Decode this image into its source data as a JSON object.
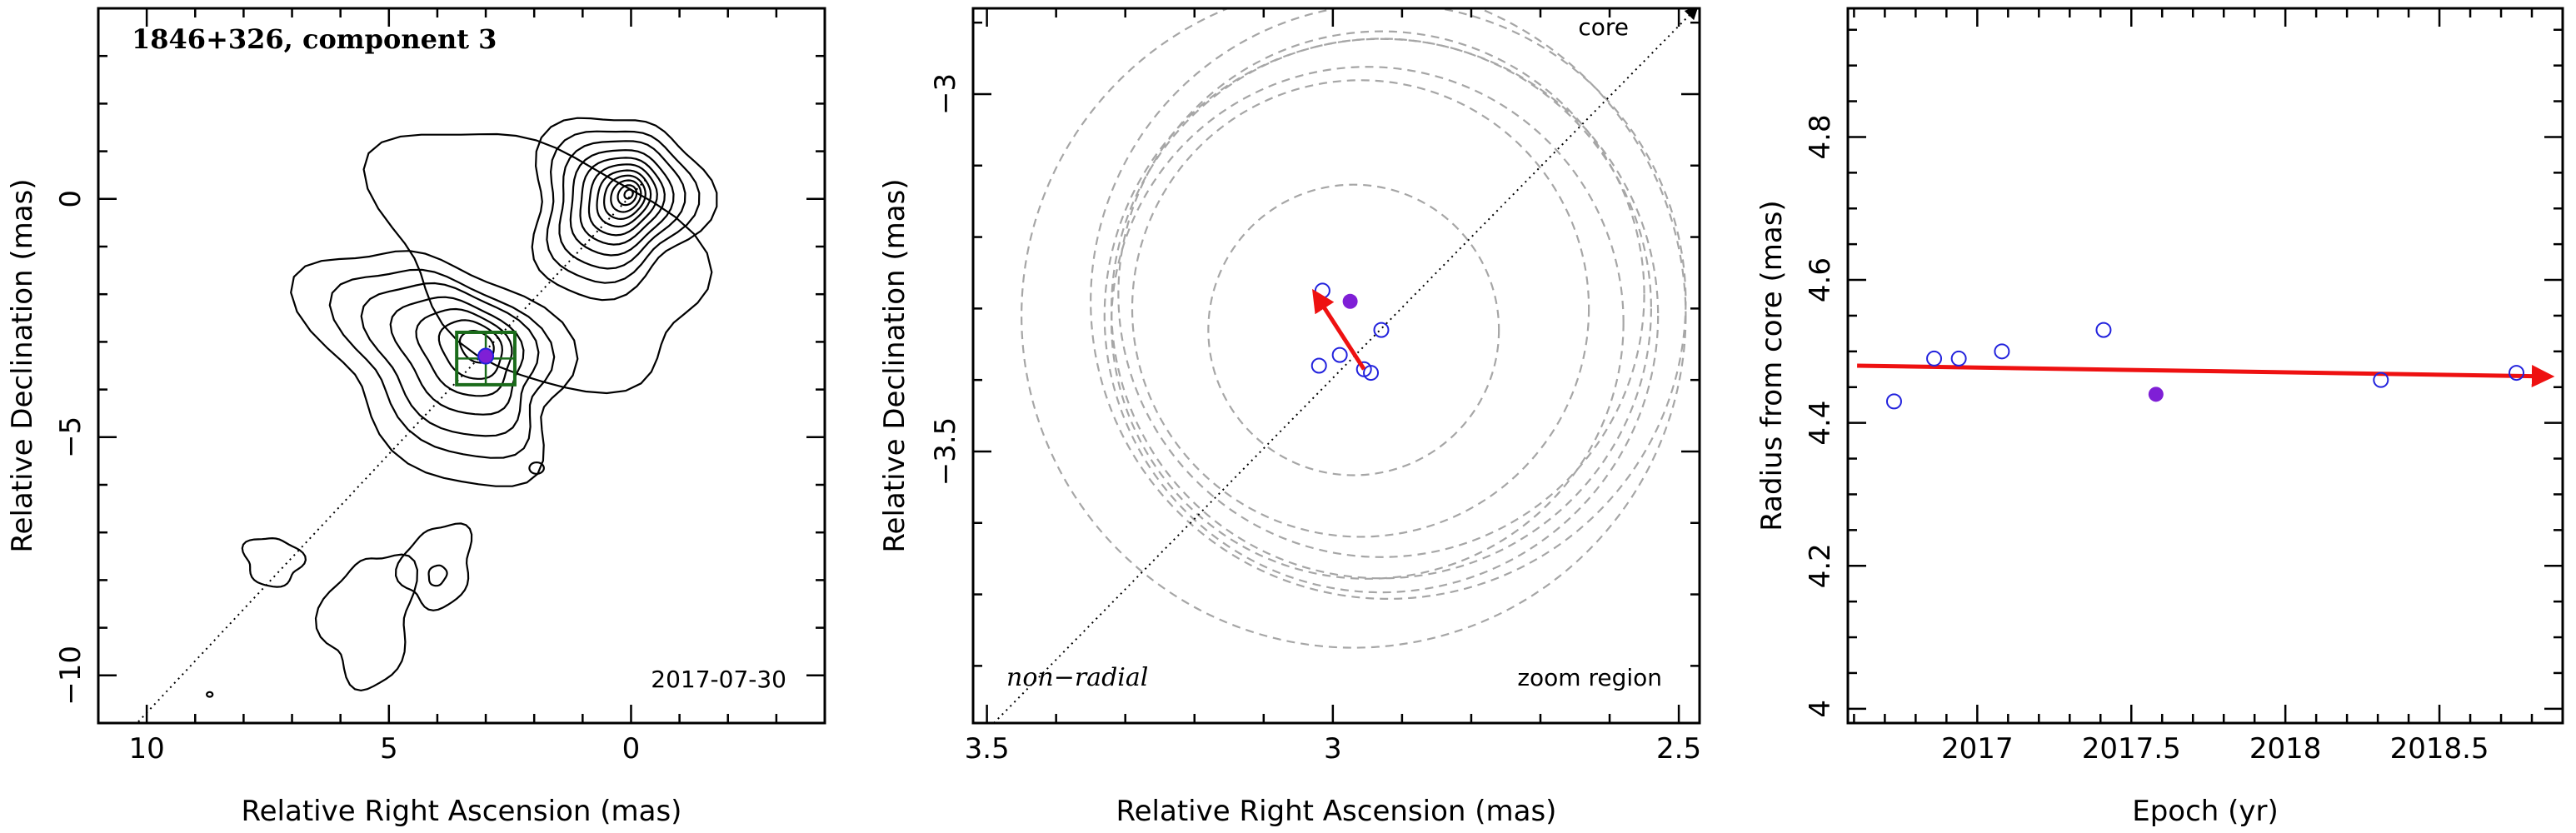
{
  "chart_data": [
    {
      "type": "contour",
      "title": "1846+326, component 3",
      "xlabel": "Relative Right Ascension (mas)",
      "ylabel": "Relative Declination (mas)",
      "xlim": [
        11,
        -4
      ],
      "ylim": [
        -11,
        4
      ],
      "x_ticks": [
        10,
        5,
        0
      ],
      "y_ticks": [
        0,
        -5,
        -10
      ],
      "epoch_label": "2017-07-30",
      "core": {
        "x": 0,
        "y": 0
      },
      "component": {
        "x": 3.0,
        "y": -3.3,
        "color": "#7f1fd6"
      },
      "zoom_box": {
        "x": [
          2.4,
          3.6
        ],
        "y": [
          -3.9,
          -2.8
        ],
        "color": "#1a6b1a"
      },
      "contour_color": "#000000"
    },
    {
      "type": "scatter",
      "xlabel": "Relative Right Ascension (mas)",
      "ylabel": "Relative Declination (mas)",
      "xlim": [
        3.52,
        2.47
      ],
      "ylim": [
        -3.88,
        -2.88
      ],
      "x_ticks": [
        3.5,
        3,
        2.5
      ],
      "x_tick_labels": [
        "3.5",
        "3",
        "2.5"
      ],
      "y_ticks": [
        -3,
        -3.5
      ],
      "y_tick_labels": [
        "−3",
        "−3.5"
      ],
      "core_label": "core",
      "non_radial_label": "non−radial",
      "zoom_label": "zoom region",
      "points_open": [
        {
          "x": 3.015,
          "y": -3.275
        },
        {
          "x": 3.02,
          "y": -3.38
        },
        {
          "x": 2.99,
          "y": -3.365
        },
        {
          "x": 2.955,
          "y": -3.385
        },
        {
          "x": 2.945,
          "y": -3.39
        },
        {
          "x": 2.93,
          "y": -3.33
        }
      ],
      "points_filled": [
        {
          "x": 2.975,
          "y": -3.29
        }
      ],
      "circles": [
        {
          "cx": 2.97,
          "cy": -3.33,
          "r": 0.21
        },
        {
          "cx": 2.96,
          "cy": -3.3,
          "r": 0.33
        },
        {
          "cx": 2.95,
          "cy": -3.32,
          "r": 0.37
        },
        {
          "cx": 2.93,
          "cy": -3.28,
          "r": 0.38
        },
        {
          "cx": 2.93,
          "cy": -3.3,
          "r": 0.39
        },
        {
          "cx": 2.93,
          "cy": -3.31,
          "r": 0.4
        },
        {
          "cx": 2.92,
          "cy": -3.29,
          "r": 0.43
        },
        {
          "cx": 2.97,
          "cy": -3.31,
          "r": 0.48
        }
      ],
      "vector": {
        "from": [
          2.955,
          -3.385
        ],
        "to": [
          3.025,
          -3.28
        ],
        "color": "#ee1111"
      },
      "point_color": "#2222dd",
      "filled_color": "#7f1fd6"
    },
    {
      "type": "scatter",
      "xlabel": "Epoch (yr)",
      "ylabel": "Radius from core (mas)",
      "xlim": [
        2016.58,
        2018.9
      ],
      "ylim": [
        3.98,
        4.98
      ],
      "x_ticks": [
        2017,
        2017.5,
        2018,
        2018.5
      ],
      "x_tick_labels": [
        "2017",
        "2017.5",
        "2018",
        "2018.5"
      ],
      "y_ticks": [
        4,
        4.2,
        4.4,
        4.6,
        4.8
      ],
      "y_tick_labels": [
        "4",
        "4.2",
        "4.4",
        "4.6",
        "4.8"
      ],
      "points_open": [
        {
          "x": 2016.73,
          "y": 4.43
        },
        {
          "x": 2016.86,
          "y": 4.49
        },
        {
          "x": 2016.94,
          "y": 4.49
        },
        {
          "x": 2017.08,
          "y": 4.5
        },
        {
          "x": 2017.41,
          "y": 4.53
        },
        {
          "x": 2018.31,
          "y": 4.46
        },
        {
          "x": 2018.75,
          "y": 4.47
        }
      ],
      "points_filled": [
        {
          "x": 2017.58,
          "y": 4.44
        }
      ],
      "fit_line": {
        "x": [
          2016.61,
          2018.87
        ],
        "y": [
          4.48,
          4.465
        ],
        "color": "#ee1111"
      },
      "point_color": "#2222dd",
      "filled_color": "#7f1fd6"
    }
  ]
}
